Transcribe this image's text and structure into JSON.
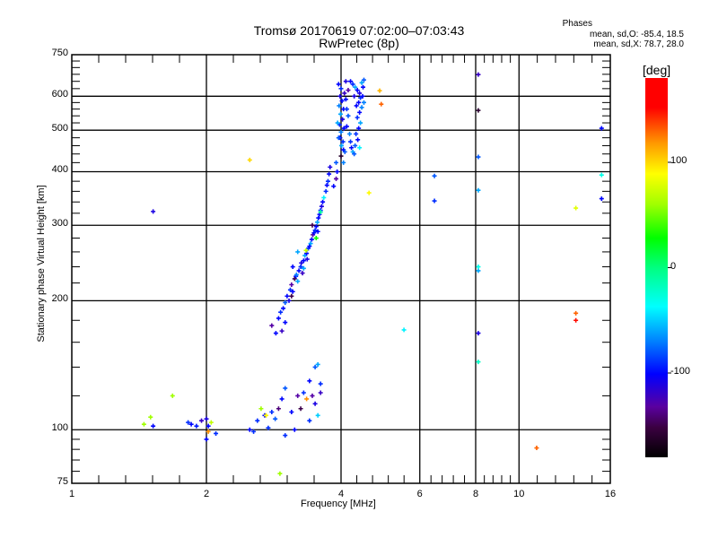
{
  "header": {
    "title": "Tromsø 20170619 07:02:00–07:03:43",
    "subtitle": "RwPretec (8p)",
    "stats_title": "Phases",
    "stats_o": "mean, sd,O: -85.4, 18.5",
    "stats_x": "mean, sd,X:  78.7, 28.0"
  },
  "colorbar": {
    "label": "[deg]",
    "range": [
      -180,
      180
    ],
    "ticks": [
      {
        "value": 100,
        "label": "100"
      },
      {
        "value": 0,
        "label": "0"
      },
      {
        "value": -100,
        "label": "-100"
      }
    ],
    "stops": [
      {
        "value": -180,
        "color": "#000000"
      },
      {
        "value": -152,
        "color": "#3a0040"
      },
      {
        "value": -132,
        "color": "#5a00a0"
      },
      {
        "value": -101,
        "color": "#0000ff"
      },
      {
        "value": -70,
        "color": "#0080ff"
      },
      {
        "value": -37,
        "color": "#00ffff"
      },
      {
        "value": 0,
        "color": "#00ff80"
      },
      {
        "value": 28,
        "color": "#00ff00"
      },
      {
        "value": 60,
        "color": "#a0ff00"
      },
      {
        "value": 89,
        "color": "#ffff00"
      },
      {
        "value": 118,
        "color": "#ff9900"
      },
      {
        "value": 152,
        "color": "#ff0000"
      },
      {
        "value": 180,
        "color": "#ff0000"
      }
    ]
  },
  "chart_data": {
    "type": "scatter",
    "title": "Tromsø 20170619 07:02:00–07:03:43",
    "xlabel": "Frequency [MHz]",
    "ylabel": "Stationary phase Virtual Height [km]",
    "xscale": "log",
    "yscale": "log",
    "xlim": [
      1,
      16
    ],
    "ylim": [
      75,
      750
    ],
    "grid": true,
    "xticks": [
      {
        "v": 1,
        "l": "1"
      },
      {
        "v": 2,
        "l": "2"
      },
      {
        "v": 4,
        "l": "4"
      },
      {
        "v": 6,
        "l": "6"
      },
      {
        "v": 8,
        "l": "8"
      },
      {
        "v": 10,
        "l": "10"
      },
      {
        "v": 16,
        "l": "16"
      }
    ],
    "yticks": [
      {
        "v": 75,
        "l": "75"
      },
      {
        "v": 100,
        "l": "100"
      },
      {
        "v": 200,
        "l": "200"
      },
      {
        "v": 300,
        "l": "300"
      },
      {
        "v": 400,
        "l": "400"
      },
      {
        "v": 500,
        "l": "500"
      },
      {
        "v": 600,
        "l": "600"
      },
      {
        "v": 750,
        "l": "750"
      }
    ],
    "yminor": [
      80,
      85,
      90,
      95,
      120,
      140,
      160,
      180,
      220,
      240,
      260,
      280,
      320,
      340,
      360,
      380,
      420,
      440,
      460,
      480,
      520,
      540,
      560,
      580,
      625,
      650,
      675,
      700,
      725
    ],
    "points_format": [
      "frequency_MHz",
      "height_km",
      "phase_deg"
    ],
    "points": [
      [
        3.95,
        640,
        -100
      ],
      [
        4.0,
        625,
        -90
      ],
      [
        3.98,
        600,
        -110
      ],
      [
        4.02,
        585,
        -100
      ],
      [
        3.96,
        570,
        -70
      ],
      [
        4.05,
        560,
        -100
      ],
      [
        3.99,
        545,
        -60
      ],
      [
        4.03,
        530,
        -110
      ],
      [
        3.97,
        515,
        -90
      ],
      [
        4.06,
        505,
        -100
      ],
      [
        4.0,
        495,
        -70
      ],
      [
        3.98,
        480,
        -100
      ],
      [
        4.04,
        470,
        -90
      ],
      [
        4.01,
        460,
        -60
      ],
      [
        4.05,
        450,
        -100
      ],
      [
        4.08,
        445,
        -80
      ],
      [
        3.93,
        520,
        -60
      ],
      [
        3.95,
        480,
        -80
      ],
      [
        4.07,
        610,
        -120
      ],
      [
        4.1,
        590,
        -100
      ],
      [
        4.12,
        560,
        -90
      ],
      [
        4.15,
        540,
        -80
      ],
      [
        4.12,
        510,
        -100
      ],
      [
        4.18,
        490,
        -70
      ],
      [
        4.2,
        470,
        -90
      ],
      [
        4.22,
        455,
        -100
      ],
      [
        4.25,
        445,
        -60
      ],
      [
        4.28,
        440,
        -80
      ],
      [
        4.2,
        650,
        -100
      ],
      [
        4.25,
        640,
        -90
      ],
      [
        4.3,
        630,
        -60
      ],
      [
        4.35,
        620,
        -100
      ],
      [
        4.4,
        610,
        -110
      ],
      [
        4.45,
        645,
        -60
      ],
      [
        4.5,
        655,
        -80
      ],
      [
        4.48,
        630,
        -100
      ],
      [
        4.42,
        595,
        -90
      ],
      [
        4.38,
        580,
        -100
      ],
      [
        4.45,
        565,
        -70
      ],
      [
        4.4,
        550,
        -100
      ],
      [
        4.35,
        535,
        -90
      ],
      [
        4.42,
        520,
        -60
      ],
      [
        4.38,
        505,
        -100
      ],
      [
        4.32,
        490,
        -90
      ],
      [
        4.36,
        475,
        -100
      ],
      [
        4.3,
        460,
        -80
      ],
      [
        4.4,
        455,
        -40
      ],
      [
        4.28,
        600,
        -110
      ],
      [
        4.33,
        570,
        -100
      ],
      [
        4.47,
        600,
        -100
      ],
      [
        4.5,
        580,
        -70
      ],
      [
        4.15,
        620,
        -130
      ],
      [
        4.1,
        650,
        -110
      ],
      [
        3.92,
        400,
        -100
      ],
      [
        3.9,
        385,
        -130
      ],
      [
        3.85,
        370,
        -100
      ],
      [
        4.0,
        435,
        -160
      ],
      [
        4.05,
        420,
        -70
      ],
      [
        3.9,
        420,
        -80
      ],
      [
        2.9,
        182,
        -100
      ],
      [
        2.93,
        188,
        -90
      ],
      [
        2.97,
        192,
        -100
      ],
      [
        3.0,
        198,
        -80
      ],
      [
        3.03,
        205,
        -100
      ],
      [
        3.06,
        200,
        -110
      ],
      [
        3.08,
        212,
        -90
      ],
      [
        3.1,
        218,
        -130
      ],
      [
        3.12,
        210,
        -100
      ],
      [
        3.15,
        225,
        -150
      ],
      [
        3.17,
        228,
        -100
      ],
      [
        3.2,
        222,
        -60
      ],
      [
        3.22,
        235,
        -100
      ],
      [
        3.25,
        240,
        -90
      ],
      [
        3.28,
        232,
        -120
      ],
      [
        3.3,
        248,
        -100
      ],
      [
        3.32,
        255,
        -60
      ],
      [
        3.35,
        258,
        -100
      ],
      [
        3.36,
        250,
        -110
      ],
      [
        3.38,
        265,
        -90
      ],
      [
        3.4,
        268,
        -100
      ],
      [
        3.42,
        272,
        -60
      ],
      [
        3.44,
        278,
        -100
      ],
      [
        3.46,
        285,
        -130
      ],
      [
        3.48,
        288,
        -100
      ],
      [
        3.5,
        292,
        -90
      ],
      [
        3.52,
        298,
        -100
      ],
      [
        3.54,
        305,
        -60
      ],
      [
        3.56,
        312,
        -100
      ],
      [
        3.58,
        318,
        -100
      ],
      [
        3.6,
        325,
        -90
      ],
      [
        3.62,
        332,
        -110
      ],
      [
        3.64,
        340,
        -100
      ],
      [
        3.66,
        348,
        -40
      ],
      [
        3.7,
        360,
        -90
      ],
      [
        3.72,
        372,
        -100
      ],
      [
        3.74,
        380,
        -90
      ],
      [
        3.76,
        395,
        -100
      ],
      [
        3.78,
        410,
        -110
      ],
      [
        3.34,
        262,
        70
      ],
      [
        3.26,
        245,
        -110
      ],
      [
        3.18,
        230,
        -70
      ],
      [
        3.12,
        240,
        -100
      ],
      [
        3.52,
        280,
        30
      ],
      [
        3.6,
        322,
        -10
      ],
      [
        3.3,
        238,
        -60
      ],
      [
        3.2,
        260,
        -60
      ],
      [
        2.95,
        170,
        -120
      ],
      [
        3.0,
        178,
        -100
      ],
      [
        2.8,
        175,
        -130
      ],
      [
        2.86,
        168,
        -100
      ],
      [
        3.45,
        300,
        -150
      ],
      [
        3.55,
        290,
        -100
      ],
      [
        3.1,
        205,
        -150
      ],
      [
        1.82,
        104,
        -90
      ],
      [
        1.85,
        103,
        -100
      ],
      [
        1.9,
        102,
        -95
      ],
      [
        1.95,
        105,
        -120
      ],
      [
        2.0,
        106,
        -110
      ],
      [
        2.02,
        102,
        -100
      ],
      [
        2.0,
        95,
        -100
      ],
      [
        2.1,
        98,
        -90
      ],
      [
        1.52,
        102,
        -100
      ],
      [
        1.5,
        107,
        60
      ],
      [
        1.45,
        103,
        60
      ],
      [
        1.68,
        120,
        60
      ],
      [
        2.5,
        100,
        -100
      ],
      [
        2.55,
        99,
        -90
      ],
      [
        2.6,
        105,
        -90
      ],
      [
        2.7,
        108,
        -100
      ],
      [
        2.8,
        110,
        -90
      ],
      [
        2.9,
        112,
        -140
      ],
      [
        2.95,
        118,
        -100
      ],
      [
        3.0,
        125,
        -80
      ],
      [
        3.1,
        110,
        -100
      ],
      [
        3.2,
        120,
        -130
      ],
      [
        3.25,
        112,
        -150
      ],
      [
        3.3,
        122,
        -90
      ],
      [
        3.4,
        130,
        -100
      ],
      [
        3.45,
        120,
        -130
      ],
      [
        3.5,
        140,
        -80
      ],
      [
        3.55,
        142,
        -60
      ],
      [
        3.6,
        128,
        -90
      ],
      [
        3.6,
        122,
        -120
      ],
      [
        3.5,
        115,
        -110
      ],
      [
        3.55,
        108,
        -50
      ],
      [
        3.4,
        105,
        -90
      ],
      [
        2.85,
        106,
        -80
      ],
      [
        2.75,
        101,
        -90
      ],
      [
        3.0,
        97,
        -90
      ],
      [
        3.15,
        100,
        -100
      ],
      [
        2.65,
        112,
        60
      ],
      [
        2.72,
        108,
        90
      ],
      [
        3.35,
        118,
        120
      ],
      [
        2.02,
        99,
        120
      ],
      [
        2.05,
        104,
        70
      ],
      [
        1.52,
        323,
        -110
      ],
      [
        2.5,
        426,
        100
      ],
      [
        4.88,
        618,
        110
      ],
      [
        4.92,
        575,
        130
      ],
      [
        4.62,
        357,
        90
      ],
      [
        5.53,
        171,
        -40
      ],
      [
        6.47,
        391,
        -80
      ],
      [
        6.47,
        342,
        -90
      ],
      [
        8.11,
        674,
        -120
      ],
      [
        8.11,
        556,
        -160
      ],
      [
        8.11,
        433,
        -80
      ],
      [
        8.11,
        362,
        -60
      ],
      [
        8.11,
        235,
        -60
      ],
      [
        8.11,
        240,
        -30
      ],
      [
        8.11,
        168,
        -110
      ],
      [
        8.11,
        144,
        -20
      ],
      [
        10.95,
        90.7,
        130
      ],
      [
        13.4,
        329,
        80
      ],
      [
        13.4,
        187,
        130
      ],
      [
        13.4,
        180,
        150
      ],
      [
        15.3,
        505,
        -100
      ],
      [
        15.3,
        393,
        -30
      ],
      [
        15.3,
        346,
        -100
      ],
      [
        2.92,
        79,
        60
      ]
    ]
  }
}
